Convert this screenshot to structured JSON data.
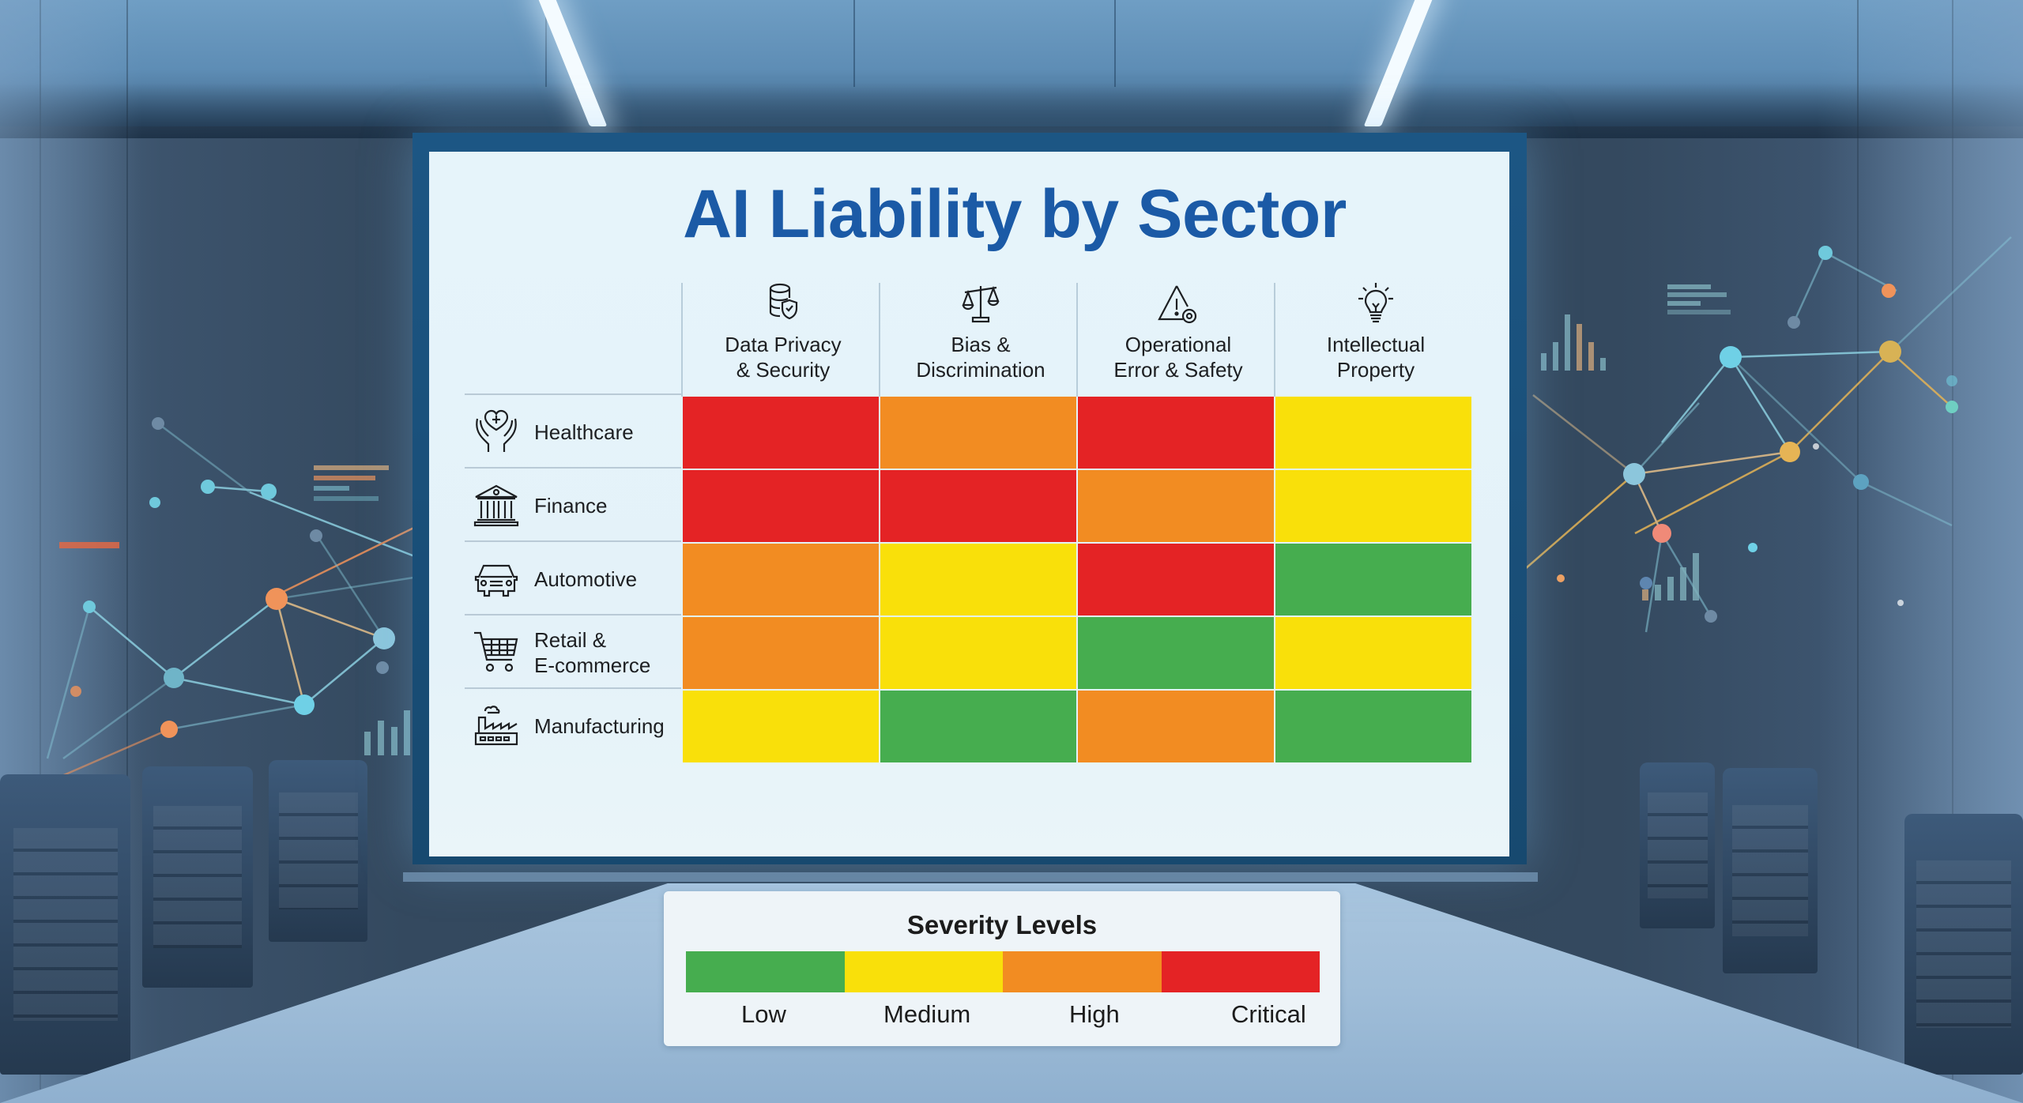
{
  "scene": {
    "description": "Conference room with projection screen showing heatmap",
    "colors": {
      "title": "#1b5aa6",
      "screen_bg": "#e6f4fa",
      "network_cyan": "#6fd0e6",
      "network_orange": "#f0935a",
      "network_gold": "#e6b455"
    }
  },
  "slide": {
    "title": "AI Liability by Sector"
  },
  "chart_data": {
    "type": "heatmap",
    "title": "AI Liability by Sector",
    "columns": [
      {
        "label": "Data Privacy\n& Security",
        "icon": "database-shield-icon"
      },
      {
        "label": "Bias &\nDiscrimination",
        "icon": "scales-icon"
      },
      {
        "label": "Operational\nError & Safety",
        "icon": "warning-triangle-icon"
      },
      {
        "label": "Intellectual\nProperty",
        "icon": "lightbulb-icon"
      }
    ],
    "rows": [
      {
        "label": "Healthcare",
        "icon": "heart-hands-icon",
        "values": [
          "Critical",
          "High",
          "Critical",
          "Medium"
        ]
      },
      {
        "label": "Finance",
        "icon": "bank-icon",
        "values": [
          "Critical",
          "Critical",
          "High",
          "Medium"
        ]
      },
      {
        "label": "Automotive",
        "icon": "car-icon",
        "values": [
          "High",
          "Medium",
          "Critical",
          "Low"
        ]
      },
      {
        "label": "Retail &\nE-commerce",
        "icon": "shopping-cart-icon",
        "values": [
          "High",
          "Medium",
          "Low",
          "Medium"
        ]
      },
      {
        "label": "Manufacturing",
        "icon": "factory-icon",
        "values": [
          "Medium",
          "Low",
          "High",
          "Low"
        ]
      }
    ],
    "scale": [
      "Low",
      "Medium",
      "High",
      "Critical"
    ],
    "scale_numeric": {
      "Low": 1,
      "Medium": 2,
      "High": 3,
      "Critical": 4
    },
    "colors": {
      "Low": "#46ad4f",
      "Medium": "#f9e00a",
      "High": "#f28c22",
      "Critical": "#e42325"
    }
  },
  "legend": {
    "title": "Severity Levels",
    "items": [
      {
        "label": "Low",
        "color": "#46ad4f"
      },
      {
        "label": "Medium",
        "color": "#f9e00a"
      },
      {
        "label": "High",
        "color": "#f28c22"
      },
      {
        "label": "Critical",
        "color": "#e42325"
      }
    ]
  }
}
